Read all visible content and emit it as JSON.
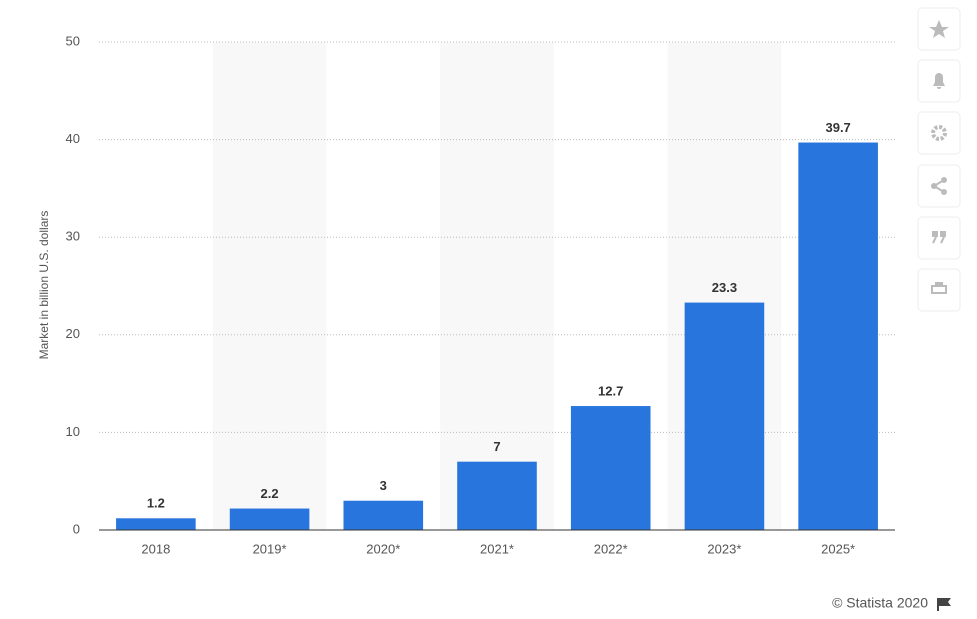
{
  "chart_data": {
    "type": "bar",
    "y_label": "Market in billion U.S. dollars",
    "categories": [
      "2018",
      "2019*",
      "2020*",
      "2021*",
      "2022*",
      "2023*",
      "2025*"
    ],
    "values": [
      1.2,
      2.2,
      3,
      7,
      12.7,
      23.3,
      39.7
    ],
    "color": "#2876dd",
    "ylim": [
      0,
      50
    ],
    "yticks": [
      0,
      10,
      20,
      30,
      40,
      50
    ],
    "grid": true,
    "credit": "© Statista 2020"
  }
}
